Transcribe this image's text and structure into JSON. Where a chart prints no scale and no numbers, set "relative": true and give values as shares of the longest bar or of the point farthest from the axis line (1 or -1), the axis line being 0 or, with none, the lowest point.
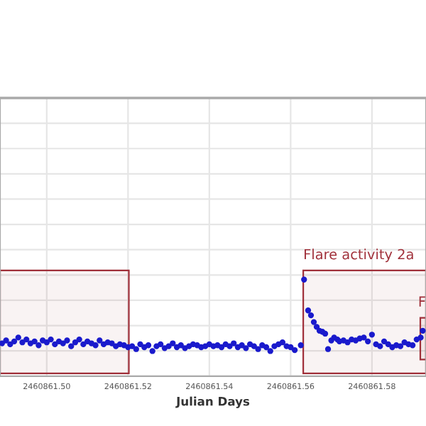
{
  "chart_data": {
    "type": "scatter",
    "xlabel": "Julian Days",
    "relative": true,
    "grid": true,
    "tick_labels": "x",
    "marker": "circle",
    "xlim": [
      2460861.4885,
      2460861.5933
    ],
    "xticks": [
      {
        "value": 2460861.5,
        "label": "2460861.50"
      },
      {
        "value": 2460861.52,
        "label": "2460861.52"
      },
      {
        "value": 2460861.54,
        "label": "2460861.54"
      },
      {
        "value": 2460861.56,
        "label": "2460861.56"
      },
      {
        "value": 2460861.58,
        "label": "2460861.58"
      }
    ],
    "bands": [
      {
        "axis": "x",
        "from": 2460861.4885,
        "to": 2460861.5202,
        "color": "#a0303a"
      },
      {
        "axis": "x",
        "from": 2460861.5631,
        "to": 2460861.5933,
        "label": "Flare activity 2a",
        "color": "#a0303a"
      },
      {
        "axis": "x",
        "from": 2460861.5919,
        "to": 2460861.5933,
        "label": "F",
        "color": "#a0303a"
      }
    ],
    "series": [
      {
        "color": "#1a1acc",
        "x": [
          2460861.489,
          2460861.49,
          2460861.491,
          2460861.492,
          2460861.493,
          2460861.494,
          2460861.495,
          2460861.496,
          2460861.497,
          2460861.498,
          2460861.499,
          2460861.5,
          2460861.501,
          2460861.502,
          2460861.503,
          2460861.504,
          2460861.505,
          2460861.506,
          2460861.507,
          2460861.508,
          2460861.509,
          2460861.51,
          2460861.511,
          2460861.512,
          2460861.513,
          2460861.514,
          2460861.515,
          2460861.516,
          2460861.517,
          2460861.518,
          2460861.519,
          2460861.52,
          2460861.521,
          2460861.522,
          2460861.523,
          2460861.524,
          2460861.525,
          2460861.526,
          2460861.527,
          2460861.528,
          2460861.529,
          2460861.53,
          2460861.531,
          2460861.532,
          2460861.533,
          2460861.534,
          2460861.535,
          2460861.536,
          2460861.537,
          2460861.538,
          2460861.539,
          2460861.54,
          2460861.541,
          2460861.542,
          2460861.543,
          2460861.544,
          2460861.545,
          2460861.546,
          2460861.547,
          2460861.548,
          2460861.549,
          2460861.55,
          2460861.551,
          2460861.552,
          2460861.553,
          2460861.554,
          2460861.555,
          2460861.556,
          2460861.557,
          2460861.558,
          2460861.559,
          2460861.56,
          2460861.561,
          2460861.5625,
          2460861.5633,
          2460861.5643,
          2460861.565,
          2460861.5657,
          2460861.5664,
          2460861.5671,
          2460861.5678,
          2460861.5685,
          2460861.5692,
          2460861.57,
          2460861.5707,
          2460861.5715,
          2460861.572,
          2460861.573,
          2460861.574,
          2460861.575,
          2460861.576,
          2460861.577,
          2460861.578,
          2460861.579,
          2460861.58,
          2460861.581,
          2460861.582,
          2460861.583,
          2460861.584,
          2460861.585,
          2460861.586,
          2460861.587,
          2460861.588,
          2460861.589,
          2460861.59,
          2460861.591,
          2460861.592,
          2460861.5925
        ],
        "values": [
          0.34,
          0.37,
          0.33,
          0.36,
          0.4,
          0.35,
          0.38,
          0.34,
          0.36,
          0.32,
          0.37,
          0.35,
          0.38,
          0.33,
          0.36,
          0.34,
          0.37,
          0.31,
          0.35,
          0.38,
          0.33,
          0.36,
          0.34,
          0.32,
          0.37,
          0.33,
          0.35,
          0.34,
          0.31,
          0.33,
          0.32,
          0.3,
          0.31,
          0.28,
          0.33,
          0.3,
          0.32,
          0.26,
          0.31,
          0.33,
          0.29,
          0.31,
          0.34,
          0.3,
          0.32,
          0.29,
          0.31,
          0.33,
          0.32,
          0.3,
          0.31,
          0.33,
          0.31,
          0.32,
          0.3,
          0.33,
          0.31,
          0.34,
          0.3,
          0.32,
          0.29,
          0.33,
          0.31,
          0.28,
          0.32,
          0.3,
          0.26,
          0.31,
          0.33,
          0.35,
          0.31,
          0.3,
          0.27,
          0.32,
          1.0,
          0.68,
          0.63,
          0.56,
          0.51,
          0.47,
          0.46,
          0.44,
          0.28,
          0.37,
          0.4,
          0.38,
          0.36,
          0.37,
          0.35,
          0.38,
          0.37,
          0.39,
          0.4,
          0.36,
          0.43,
          0.33,
          0.31,
          0.36,
          0.33,
          0.3,
          0.32,
          0.31,
          0.35,
          0.33,
          0.32,
          0.38,
          0.4,
          0.47
        ]
      }
    ]
  }
}
